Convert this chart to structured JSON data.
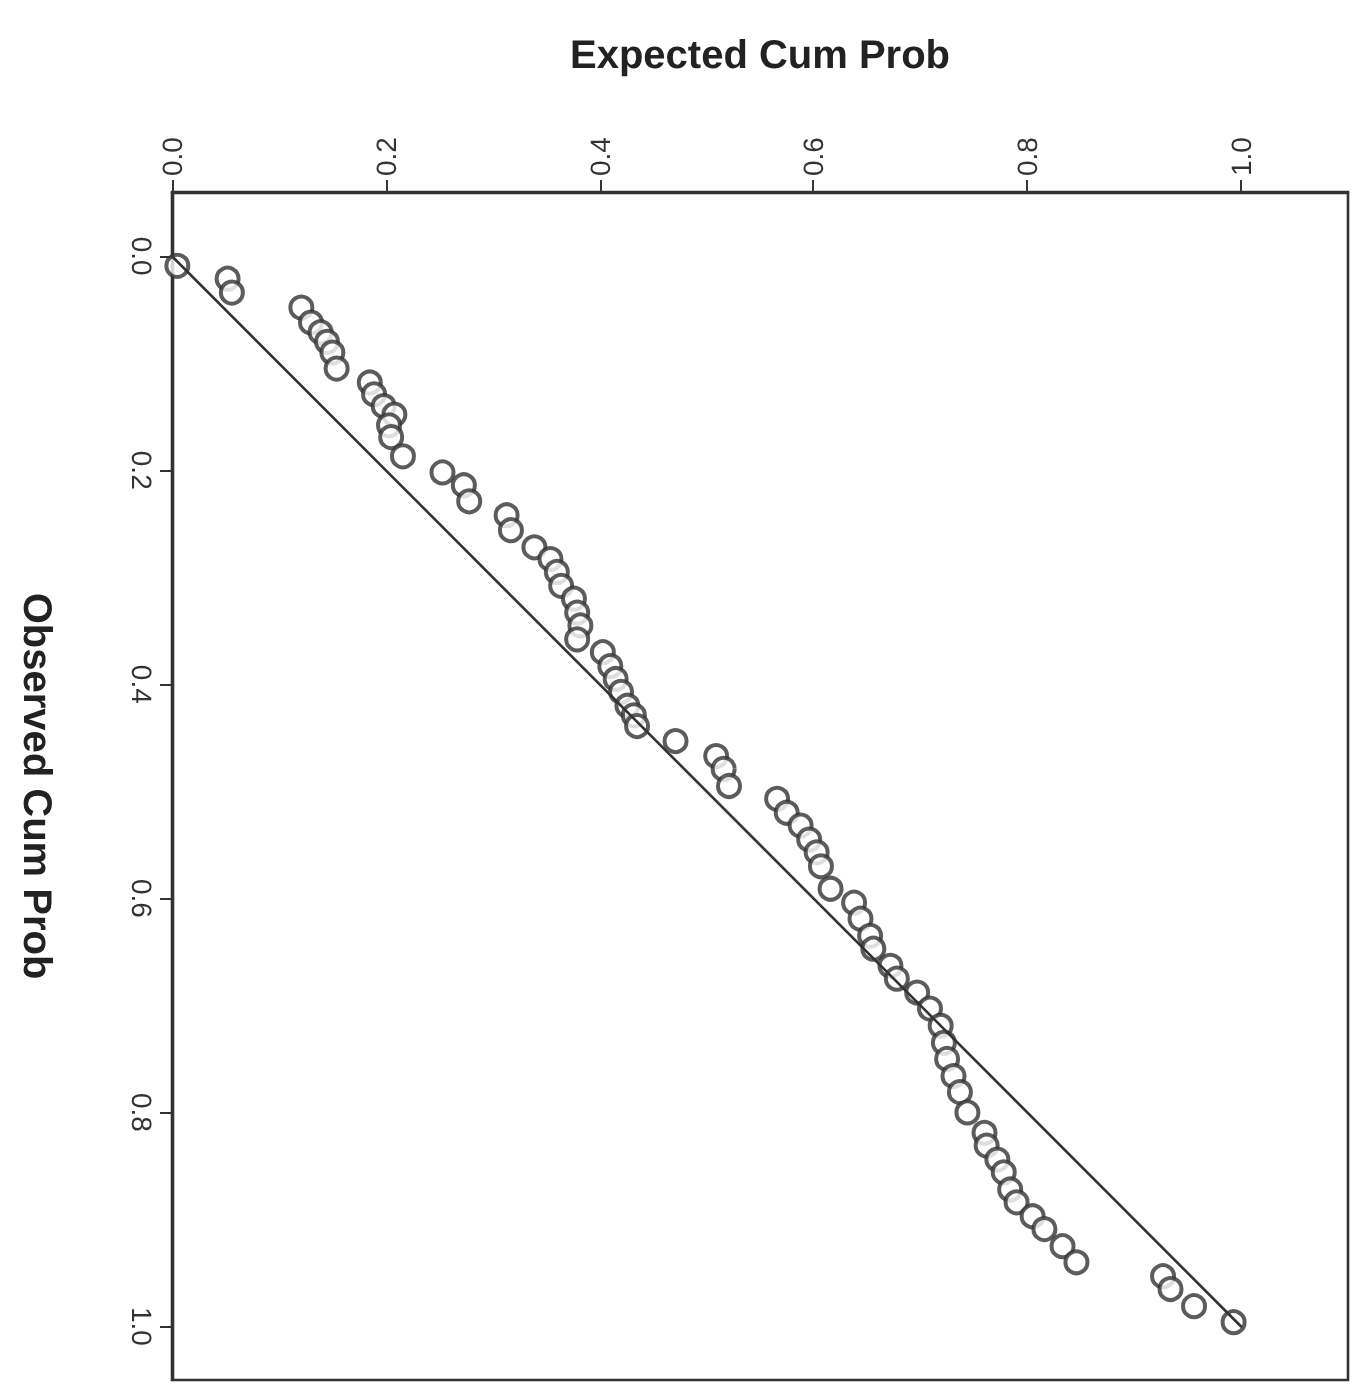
{
  "chart_data": {
    "type": "scatter",
    "xlabel": "Expected Cum Prob",
    "ylabel": "Observed Cum Prob",
    "xlim": [
      0,
      1.1
    ],
    "ylim": [
      1.05,
      -0.06
    ],
    "xticks": [
      {
        "value": 0,
        "label": "0.0"
      },
      {
        "value": 0.2,
        "label": "0.2"
      },
      {
        "value": 0.4,
        "label": "0.4"
      },
      {
        "value": 0.6,
        "label": "0.6"
      },
      {
        "value": 0.8,
        "label": "0.8"
      },
      {
        "value": 1,
        "label": "1.0"
      }
    ],
    "yticks": [
      {
        "value": 0,
        "label": "0.0"
      },
      {
        "value": 0.2,
        "label": "0.2"
      },
      {
        "value": 0.4,
        "label": "0.4"
      },
      {
        "value": 0.6,
        "label": "0.6"
      },
      {
        "value": 0.8,
        "label": "0.8"
      },
      {
        "value": 1,
        "label": "1.0"
      }
    ],
    "grid": false,
    "series": [
      {
        "color": "#333333",
        "marker": "circle",
        "x": [
          0.005,
          0.052,
          0.056,
          0.121,
          0.13,
          0.139,
          0.145,
          0.15,
          0.154,
          0.185,
          0.189,
          0.198,
          0.208,
          0.203,
          0.205,
          0.216,
          0.253,
          0.273,
          0.278,
          0.313,
          0.317,
          0.339,
          0.354,
          0.36,
          0.364,
          0.376,
          0.379,
          0.382,
          0.379,
          0.403,
          0.41,
          0.415,
          0.42,
          0.426,
          0.432,
          0.435,
          0.471,
          0.509,
          0.516,
          0.521,
          0.566,
          0.575,
          0.588,
          0.596,
          0.603,
          0.607,
          0.616,
          0.638,
          0.644,
          0.653,
          0.656,
          0.672,
          0.678,
          0.697,
          0.709,
          0.719,
          0.722,
          0.725,
          0.731,
          0.737,
          0.744,
          0.76,
          0.762,
          0.772,
          0.778,
          0.784,
          0.79,
          0.805,
          0.816,
          0.833,
          0.846,
          0.927,
          0.934,
          0.956,
          0.993
        ],
        "values": [
          0.009,
          0.021,
          0.034,
          0.048,
          0.062,
          0.071,
          0.08,
          0.09,
          0.105,
          0.118,
          0.129,
          0.14,
          0.148,
          0.158,
          0.169,
          0.187,
          0.202,
          0.214,
          0.229,
          0.242,
          0.256,
          0.272,
          0.283,
          0.295,
          0.308,
          0.32,
          0.333,
          0.345,
          0.358,
          0.37,
          0.383,
          0.395,
          0.407,
          0.42,
          0.429,
          0.439,
          0.453,
          0.467,
          0.479,
          0.495,
          0.507,
          0.52,
          0.532,
          0.545,
          0.557,
          0.57,
          0.591,
          0.604,
          0.619,
          0.635,
          0.647,
          0.663,
          0.675,
          0.688,
          0.703,
          0.719,
          0.735,
          0.75,
          0.766,
          0.781,
          0.8,
          0.819,
          0.831,
          0.844,
          0.856,
          0.872,
          0.884,
          0.897,
          0.909,
          0.925,
          0.94,
          0.953,
          0.965,
          0.981,
          0.996
        ]
      },
      {
        "type": "line",
        "color": "#333333",
        "marker": "none",
        "line_style": "solid",
        "x": [
          0,
          1
        ],
        "values": [
          0,
          1
        ]
      }
    ]
  }
}
